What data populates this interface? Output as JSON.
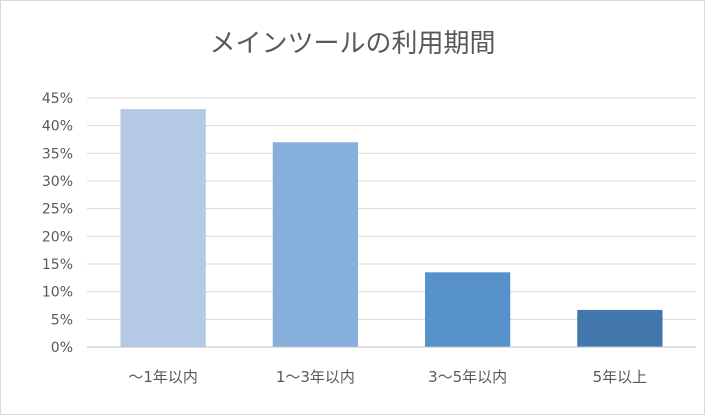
{
  "chart_data": {
    "type": "bar",
    "title": "メインツールの利用期間",
    "categories": [
      "〜1年以内",
      "1〜3年以内",
      "3〜5年以内",
      "5年以上"
    ],
    "values": [
      43,
      37,
      13.5,
      6.7
    ],
    "colors": [
      "#b4c9e6",
      "#86afdc",
      "#5692c9",
      "#4277ad"
    ],
    "ylim": [
      0,
      45
    ],
    "y_ticks": [
      "0%",
      "5%",
      "10%",
      "15%",
      "20%",
      "25%",
      "30%",
      "35%",
      "40%",
      "45%"
    ],
    "y_unit": "%",
    "grid": true,
    "legend": "none",
    "xlabel": "",
    "ylabel": ""
  }
}
